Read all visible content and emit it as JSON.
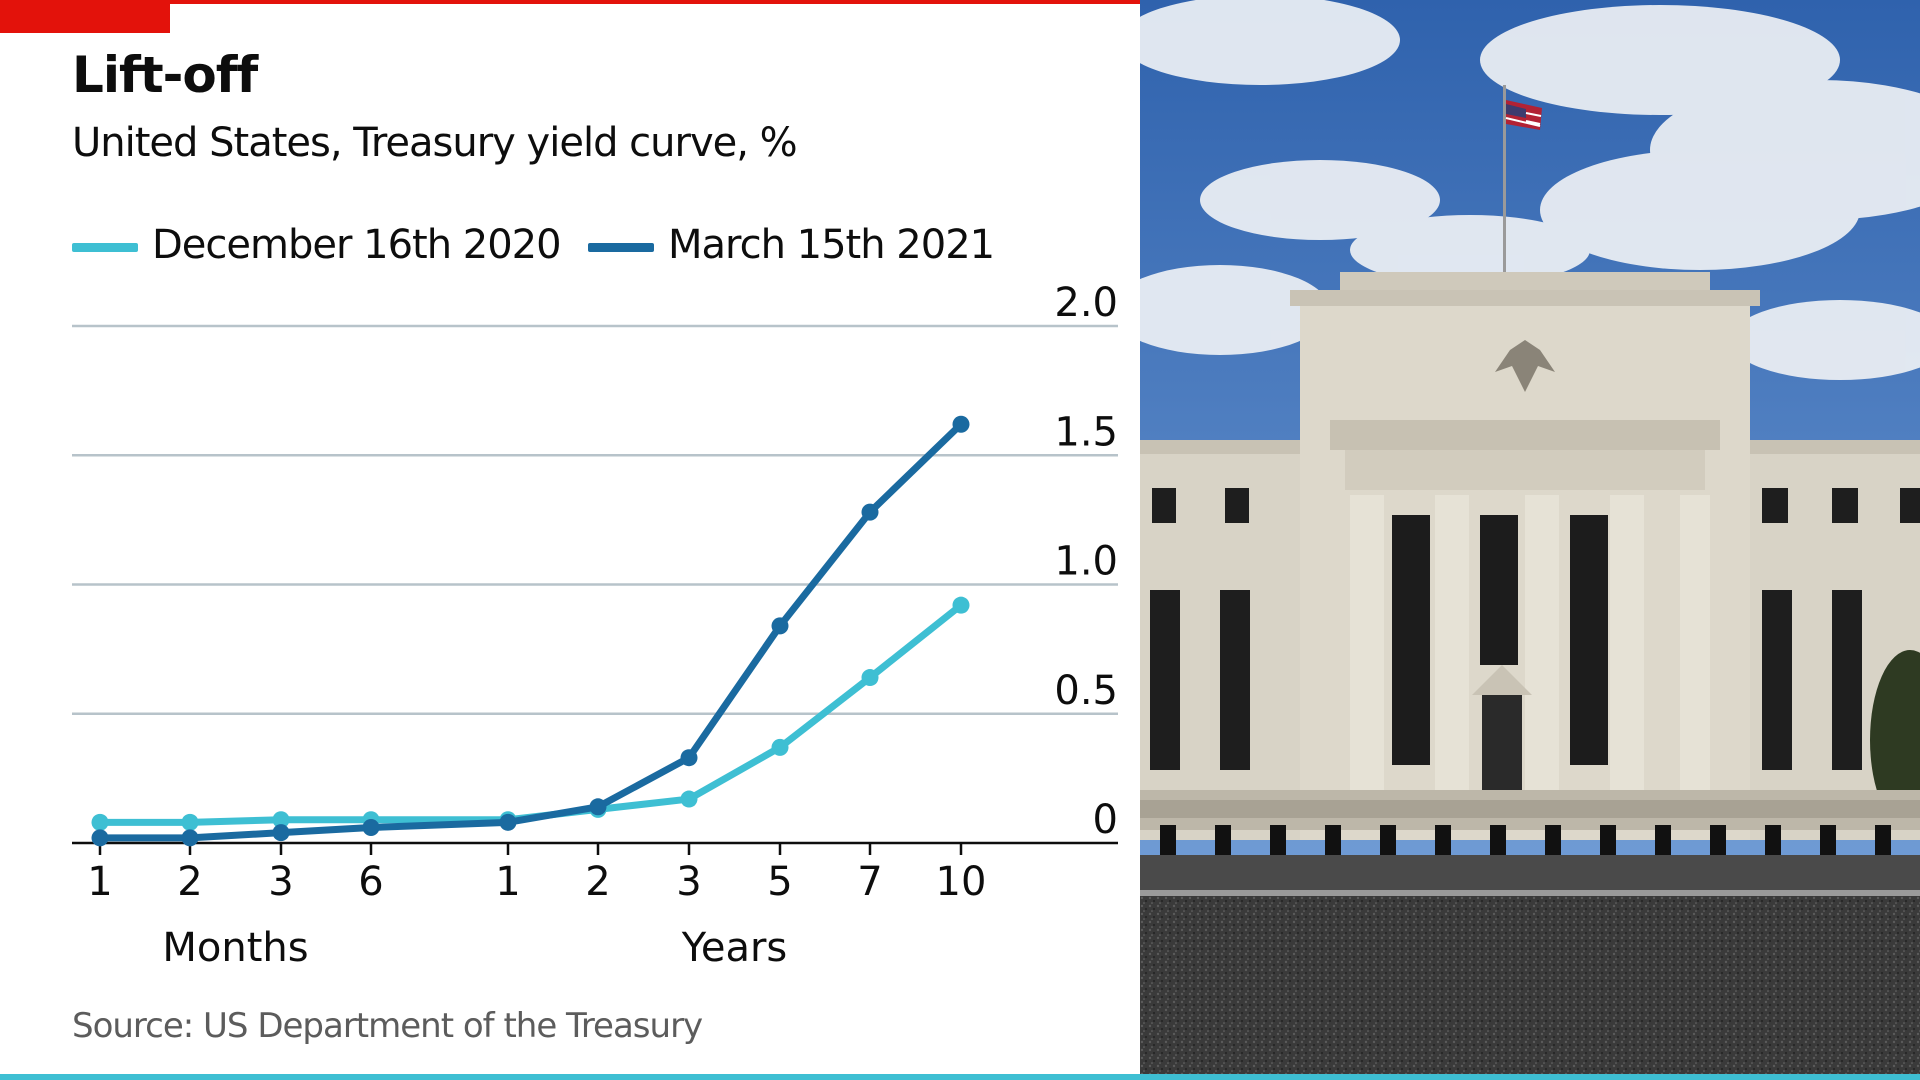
{
  "chart_data": {
    "type": "line",
    "title": "Lift-off",
    "subtitle": "United States, Treasury yield curve, %",
    "source": "Source: US Department of the Treasury",
    "categories": [
      "1",
      "2",
      "3",
      "6",
      "1",
      "2",
      "3",
      "5",
      "7",
      "10"
    ],
    "category_groups": [
      {
        "label": "Months",
        "members": [
          "1",
          "2",
          "3",
          "6"
        ]
      },
      {
        "label": "Years",
        "members": [
          "1",
          "2",
          "3",
          "5",
          "7",
          "10"
        ]
      }
    ],
    "series": [
      {
        "name": "December 16th 2020",
        "color": "#3ebfd3",
        "values": [
          0.08,
          0.08,
          0.09,
          0.09,
          0.09,
          0.13,
          0.17,
          0.37,
          0.64,
          0.92
        ]
      },
      {
        "name": "March 15th 2021",
        "color": "#1a6aa0",
        "values": [
          0.02,
          0.02,
          0.04,
          0.06,
          0.08,
          0.14,
          0.33,
          0.84,
          1.28,
          1.62
        ]
      }
    ],
    "y_ticks": [
      "0",
      "0.5",
      "1.0",
      "1.5",
      "2.0"
    ],
    "ylim": [
      0,
      2.0
    ],
    "y_axis_side": "right",
    "grid": true,
    "legend_position": "top-left"
  },
  "photo": {
    "subject": "federal-reserve-building-icon",
    "sky_color": "#4f82c4",
    "cloud_color": "#eef1f5",
    "stone_color": "#d8d3c6",
    "ground_color": "#3a3a3a"
  }
}
